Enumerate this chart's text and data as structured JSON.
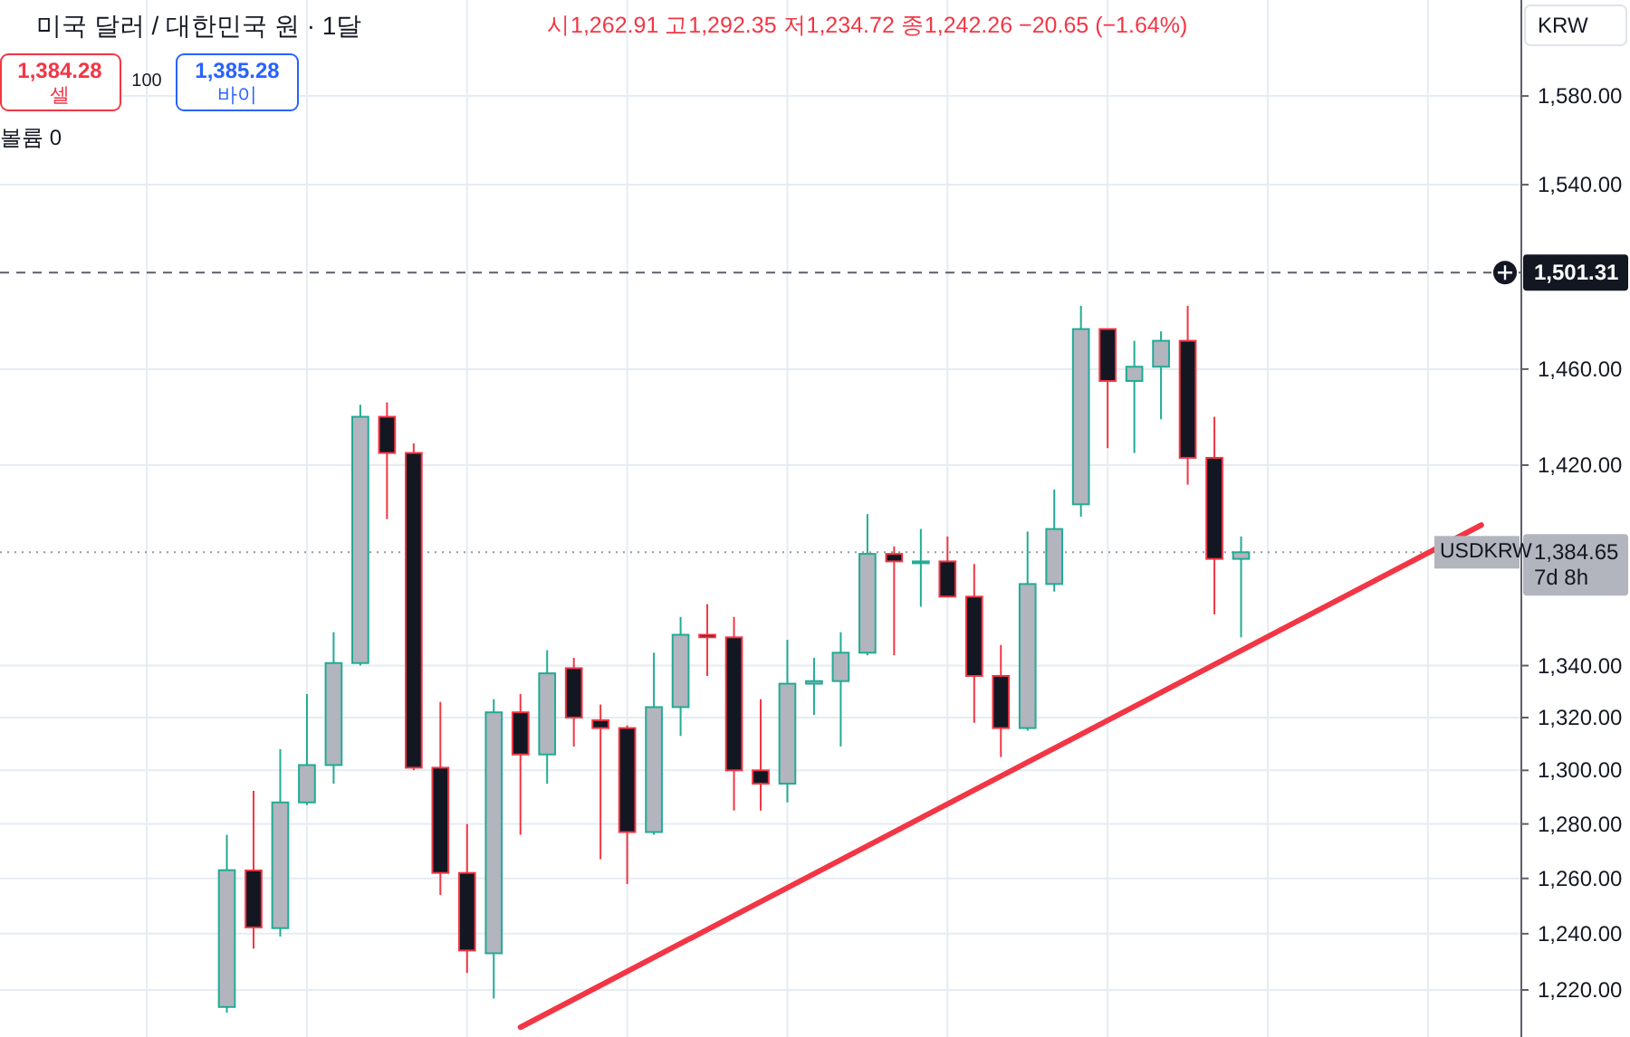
{
  "chart_data": {
    "type": "candlestick",
    "title": "미국 달러 / 대한민국 원 · 1달",
    "categories": [
      null,
      null,
      null,
      null,
      null,
      null,
      null,
      null,
      null,
      null,
      null,
      null,
      null,
      null,
      null,
      null,
      null,
      null,
      null,
      null,
      null,
      null,
      null,
      null,
      null,
      null,
      null,
      null,
      null,
      null,
      null,
      null,
      null,
      null,
      null,
      null,
      null,
      null,
      null,
      null,
      null,
      null,
      null,
      null,
      null,
      null,
      null,
      null,
      null,
      null,
      null,
      null,
      null,
      null,
      null,
      null,
      null
    ],
    "ohlc": [
      null,
      null,
      null,
      null,
      null,
      null,
      null,
      null,
      [
        1214,
        1276,
        1212,
        1263
      ],
      [
        1262.91,
        1292.35,
        1234.72,
        1242.26
      ],
      [
        1242,
        1308,
        1239,
        1288
      ],
      [
        1288,
        1329,
        1287,
        1302
      ],
      [
        1302,
        1353,
        1295,
        1341
      ],
      [
        1341,
        1445,
        1340,
        1440
      ],
      [
        1440,
        1446,
        1398,
        1425
      ],
      [
        1425,
        1429,
        1300,
        1301
      ],
      [
        1301,
        1326,
        1254,
        1262
      ],
      [
        1262,
        1280,
        1226,
        1234
      ],
      [
        1233,
        1327,
        1217,
        1322
      ],
      [
        1322,
        1329,
        1276,
        1306
      ],
      [
        1306,
        1346,
        1295,
        1337
      ],
      [
        1339,
        1343,
        1309,
        1320
      ],
      [
        1319,
        1325,
        1267,
        1316
      ],
      [
        1316,
        1317,
        1258,
        1277
      ],
      [
        1277,
        1345,
        1276,
        1324
      ],
      [
        1324,
        1359,
        1313,
        1352
      ],
      [
        1352,
        1364,
        1336,
        1351
      ],
      [
        1351,
        1359,
        1285,
        1300
      ],
      [
        1300,
        1327,
        1285,
        1295
      ],
      [
        1295,
        1350,
        1288,
        1333
      ],
      [
        1333,
        1343,
        1321,
        1334
      ],
      [
        1334,
        1353,
        1309,
        1345
      ],
      [
        1345,
        1400,
        1344,
        1384
      ],
      [
        1384,
        1387,
        1344,
        1381
      ],
      [
        1381,
        1394,
        1363,
        1381
      ],
      [
        1381,
        1391,
        1367,
        1367
      ],
      [
        1367,
        1380,
        1318,
        1336
      ],
      [
        1336,
        1348,
        1305,
        1316
      ],
      [
        1316,
        1393,
        1315,
        1372
      ],
      [
        1372,
        1410,
        1369,
        1394
      ],
      [
        1404,
        1487,
        1399,
        1477
      ],
      [
        1477,
        1477,
        1427,
        1455
      ],
      [
        1455,
        1472,
        1425,
        1461
      ],
      [
        1461,
        1476,
        1439,
        1472
      ],
      [
        1472,
        1487,
        1412,
        1423
      ],
      [
        1423,
        1440,
        1360,
        1382
      ],
      [
        1382,
        1391,
        1351,
        1384.65
      ],
      null,
      null,
      null,
      null,
      null,
      null,
      null,
      null,
      null,
      null
    ],
    "series": [
      {
        "type": "line",
        "values": [
          null,
          null,
          null,
          null,
          null,
          null,
          null,
          null,
          null,
          null,
          null,
          null,
          null,
          null,
          null,
          null,
          null,
          null,
          null,
          1206.9,
          null,
          null,
          null,
          null,
          null,
          null,
          null,
          null,
          null,
          null,
          null,
          null,
          null,
          null,
          null,
          null,
          null,
          null,
          null,
          null,
          null,
          null,
          null,
          null,
          null,
          null,
          null,
          null,
          null,
          null,
          null,
          null,
          null,
          null,
          null,
          1395.6,
          null
        ],
        "color": "#f23645"
      }
    ],
    "ylim": [
      1203.5,
      1624.5
    ],
    "log": "y",
    "yticks": [
      {
        "value": 1220,
        "label": "1,220.00"
      },
      {
        "value": 1240,
        "label": "1,240.00"
      },
      {
        "value": 1260,
        "label": "1,260.00"
      },
      {
        "value": 1280,
        "label": "1,280.00"
      },
      {
        "value": 1300,
        "label": "1,300.00"
      },
      {
        "value": 1320,
        "label": "1,320.00"
      },
      {
        "value": 1340,
        "label": "1,340.00"
      },
      {
        "value": 1420,
        "label": "1,420.00"
      },
      {
        "value": 1460,
        "label": "1,460.00"
      },
      {
        "value": 1540,
        "label": "1,540.00"
      },
      {
        "value": 1580,
        "label": "1,580.00"
      }
    ],
    "tick_labels": "y",
    "grid": true,
    "ref_lines": [
      {
        "axis": "y",
        "value": 1501.31,
        "label": "1,501.31",
        "color": "#5d606b",
        "line_style": "dashed"
      },
      {
        "axis": "y",
        "value": 1384.65,
        "label": "1,384.65",
        "color": "#9598a1",
        "line_style": "dotted"
      }
    ],
    "annotations": [
      "시1,262.91 고1,292.35 저1,234.72 종1,242.26 −20.65 (−1.64%)",
      "1,384.28",
      "셀",
      "100",
      "1,385.28",
      "바이",
      "볼륨 0",
      "KRW",
      "USDKRW",
      "7d 8h"
    ]
  }
}
